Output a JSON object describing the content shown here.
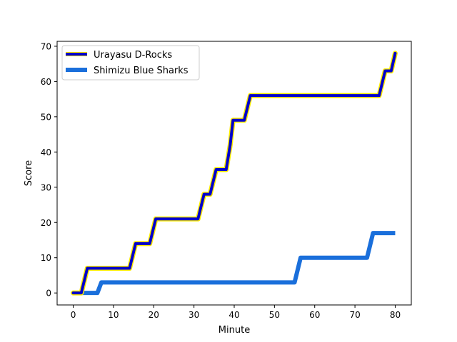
{
  "chart_data": {
    "type": "line",
    "title": "",
    "xlabel": "Minute",
    "ylabel": "Score",
    "xlim": [
      -4,
      84
    ],
    "ylim": [
      -3.4,
      71.4
    ],
    "xticks": [
      0,
      10,
      20,
      30,
      40,
      50,
      60,
      70,
      80
    ],
    "yticks": [
      0,
      10,
      20,
      30,
      40,
      50,
      60,
      70
    ],
    "legend": "top-left",
    "grid": false,
    "series": [
      {
        "name": "Urayasu D-Rocks",
        "color": "#0000cc",
        "edge_color": "#ffeb00",
        "points": [
          [
            0,
            0
          ],
          [
            2,
            0
          ],
          [
            3.5,
            7
          ],
          [
            14,
            7
          ],
          [
            15.5,
            14
          ],
          [
            19,
            14
          ],
          [
            20.5,
            21
          ],
          [
            31,
            21
          ],
          [
            32.5,
            28
          ],
          [
            34,
            28
          ],
          [
            35.5,
            35
          ],
          [
            38,
            35
          ],
          [
            39,
            42
          ],
          [
            39.7,
            49
          ],
          [
            42.5,
            49
          ],
          [
            44,
            56
          ],
          [
            76,
            56
          ],
          [
            77.5,
            63
          ],
          [
            79,
            63
          ],
          [
            80,
            68
          ]
        ]
      },
      {
        "name": "Shimizu Blue Sharks",
        "color": "#1a6fdb",
        "points": [
          [
            0,
            0
          ],
          [
            6,
            0
          ],
          [
            7,
            3
          ],
          [
            55,
            3
          ],
          [
            56.5,
            10
          ],
          [
            73,
            10
          ],
          [
            74.5,
            17
          ],
          [
            80,
            17
          ]
        ]
      }
    ]
  }
}
